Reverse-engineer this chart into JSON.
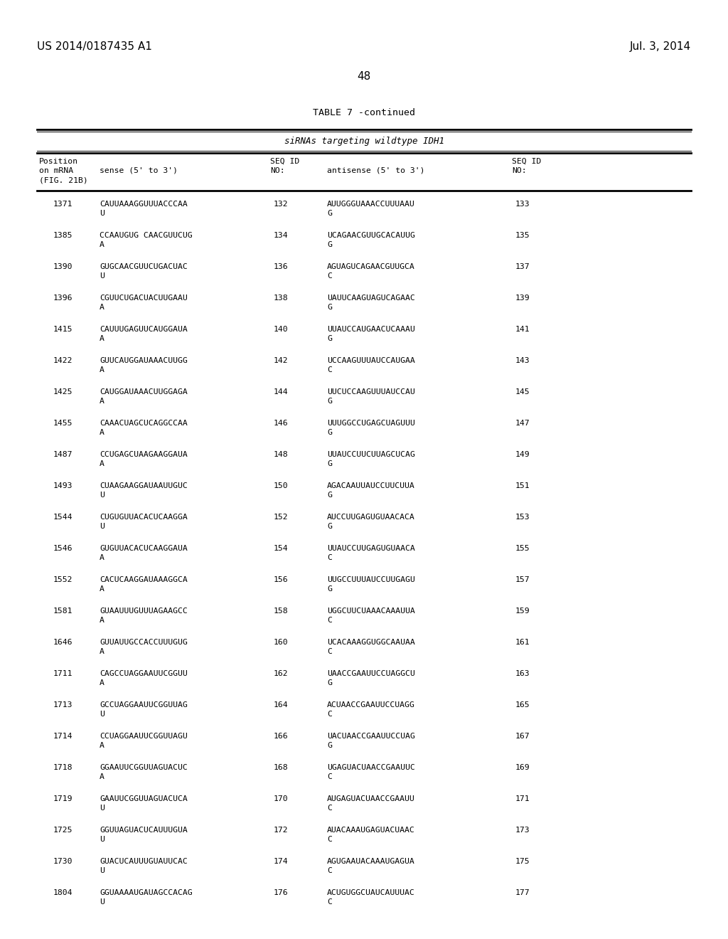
{
  "header_left": "US 2014/0187435 A1",
  "header_right": "Jul. 3, 2014",
  "page_number": "48",
  "table_title": "TABLE 7 -continued",
  "table_subtitle": "siRNAs targeting wildtype IDH1",
  "rows": [
    [
      "1371",
      "CAUUAAAGGUUUACCCAA\nU",
      "132",
      "AUUGGGUAAACCUUUAAU\nG",
      "133"
    ],
    [
      "1385",
      "CCAAUGUG CAACGUUCUG\nA",
      "134",
      "UCAGAACGUUGCACAUUG\nG",
      "135"
    ],
    [
      "1390",
      "GUGCAACGUUCUGACUAC\nU",
      "136",
      "AGUAGUCAGAACGUUGCA\nC",
      "137"
    ],
    [
      "1396",
      "CGUUCUGACUACUUGAAU\nA",
      "138",
      "UAUUCAAGUAGUCAGAAC\nG",
      "139"
    ],
    [
      "1415",
      "CAUUUGAGUUCAUGGAUA\nA",
      "140",
      "UUAUCCAUGAACUCAAAU\nG",
      "141"
    ],
    [
      "1422",
      "GUUCAUGGAUAAACUUGG\nA",
      "142",
      "UCCAAGUUUAUCCAUGAA\nC",
      "143"
    ],
    [
      "1425",
      "CAUGGAUAAACUUGGAGA\nA",
      "144",
      "UUCUCCAAGUUUAUCCAU\nG",
      "145"
    ],
    [
      "1455",
      "CAAACUAGCUCAGGCCAA\nA",
      "146",
      "UUUGGCCUGAGCUAGUUU\nG",
      "147"
    ],
    [
      "1487",
      "CCUGAGCUAAGAAGGAUA\nA",
      "148",
      "UUAUCCUUCUUAGCUCAG\nG",
      "149"
    ],
    [
      "1493",
      "CUAAGAAGGAUAAUUGUC\nU",
      "150",
      "AGACAAUUAUCCUUCUUA\nG",
      "151"
    ],
    [
      "1544",
      "CUGUGUUACACUCAAGGA\nU",
      "152",
      "AUCCUUGAGUGUAACACA\nG",
      "153"
    ],
    [
      "1546",
      "GUGUUACACUCAAGGAUA\nA",
      "154",
      "UUAUCCUUGAGUGUAACA\nC",
      "155"
    ],
    [
      "1552",
      "CACUCAAGGAUAAAGGCA\nA",
      "156",
      "UUGCCUUUAUCCUUGAGU\nG",
      "157"
    ],
    [
      "1581",
      "GUAAUUUGUUUAGAAGCC\nA",
      "158",
      "UGGCUUCUAAACAAAUUA\nC",
      "159"
    ],
    [
      "1646",
      "GUUAUUGCCACCUUUGUG\nA",
      "160",
      "UCACAAAGGUGGCAAUAA\nC",
      "161"
    ],
    [
      "1711",
      "CAGCCUAGGAAUUCGGUU\nA",
      "162",
      "UAACCGAAUUCCUAGGCU\nG",
      "163"
    ],
    [
      "1713",
      "GCCUAGGAAUUCGGUUAG\nU",
      "164",
      "ACUAACCGAAUUCCUAGG\nC",
      "165"
    ],
    [
      "1714",
      "CCUAGGAAUUCGGUUAGU\nA",
      "166",
      "UACUAACCGAAUUCCUAG\nG",
      "167"
    ],
    [
      "1718",
      "GGAAUUCGGUUAGUACUC\nA",
      "168",
      "UGAGUACUAACCGAAUUC\nC",
      "169"
    ],
    [
      "1719",
      "GAAUUCGGUUAGUACUCA\nU",
      "170",
      "AUGAGUACUAACCGAAUU\nC",
      "171"
    ],
    [
      "1725",
      "GGUUAGUACUCAUUUGUA\nU",
      "172",
      "AUACAAAUGAGUACUAAC\nC",
      "173"
    ],
    [
      "1730",
      "GUACUCAUUUGUAUUCAC\nU",
      "174",
      "AGUGAAUACAAAUGAGUA\nC",
      "175"
    ],
    [
      "1804",
      "GGUAAAAUGAUAGCCACAG\nU",
      "176",
      "ACUGUGGCUAUCAUUUAC\nC",
      "177"
    ]
  ],
  "bg_color": "#ffffff",
  "text_color": "#000000"
}
